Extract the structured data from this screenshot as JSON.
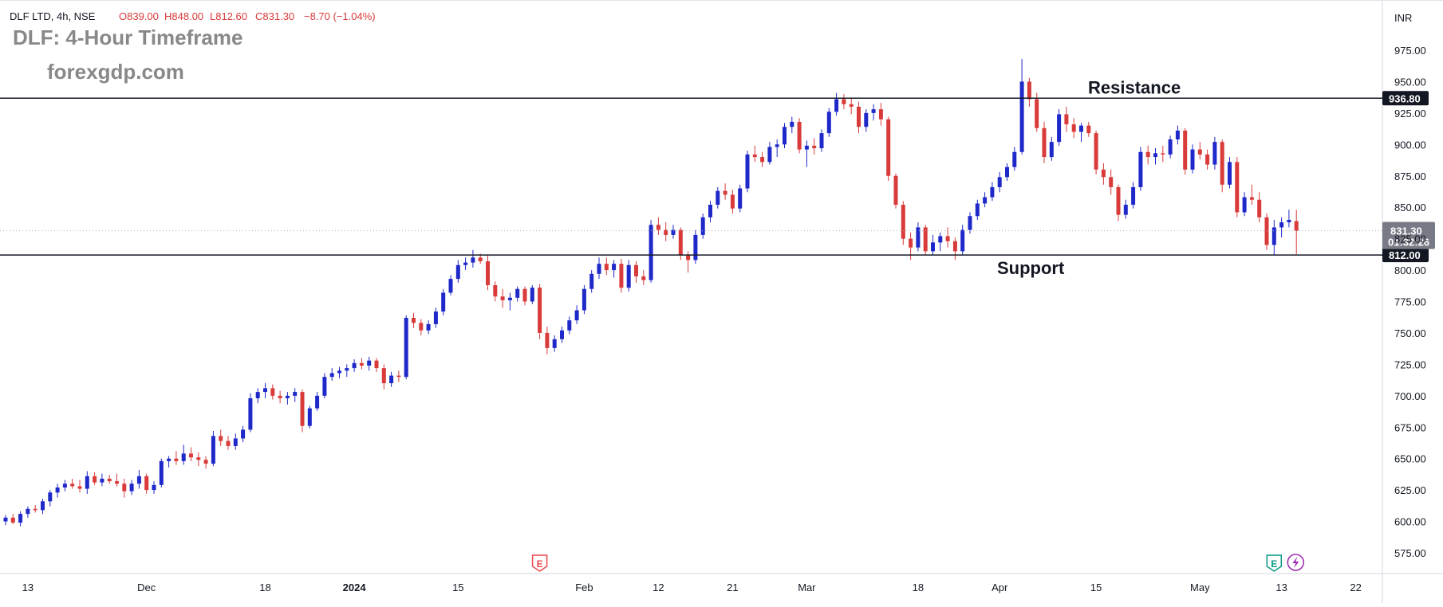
{
  "header": {
    "symbol_line": "DLF LTD, 4h, NSE",
    "open": "O839.00",
    "high": "H848.00",
    "low": "L812.60",
    "close": "C831.30",
    "change": "−8.70 (−1.04%)",
    "currency": "INR"
  },
  "overlay": {
    "title": "DLF: 4-Hour Timeframe",
    "watermark": "forexgdp.com",
    "resistance_label": "Resistance",
    "support_label": "Support"
  },
  "colors": {
    "up": "#1f28c8",
    "down": "#d93a3a",
    "line": "#131722",
    "badge_dark": "#131722",
    "badge_price": "#787b86",
    "event_red": "#e8474f",
    "event_green": "#089981",
    "event_purple": "#9c27b0"
  },
  "chart_data": {
    "type": "candlestick",
    "symbol": "DLF LTD",
    "timeframe": "4h",
    "exchange": "NSE",
    "currency": "INR",
    "ylim": [
      560,
      990
    ],
    "yticks": [
      975,
      950,
      925,
      900,
      875,
      850,
      825,
      800,
      775,
      750,
      725,
      700,
      675,
      650,
      625,
      600,
      575
    ],
    "x_ticks": [
      {
        "label": "13",
        "bar": 3
      },
      {
        "label": "Dec",
        "bar": 19
      },
      {
        "label": "18",
        "bar": 35
      },
      {
        "label": "2024",
        "bar": 47
      },
      {
        "label": "15",
        "bar": 61
      },
      {
        "label": "Feb",
        "bar": 78
      },
      {
        "label": "12",
        "bar": 88
      },
      {
        "label": "21",
        "bar": 98
      },
      {
        "label": "Mar",
        "bar": 108
      },
      {
        "label": "18",
        "bar": 123
      },
      {
        "label": "Apr",
        "bar": 134
      },
      {
        "label": "15",
        "bar": 147
      },
      {
        "label": "May",
        "bar": 161
      },
      {
        "label": "13",
        "bar": 172
      },
      {
        "label": "22",
        "bar": 182
      }
    ],
    "horizontal_levels": [
      {
        "name": "Resistance",
        "price": 936.8,
        "badge": "936.80"
      },
      {
        "name": "Support",
        "price": 812.0,
        "badge": "812.00"
      }
    ],
    "last_price": {
      "price": 831.3,
      "label": "831.30",
      "countdown": "01:32:26"
    },
    "event_markers": [
      {
        "label": "E",
        "bar": 72,
        "kind": "earnings-red"
      },
      {
        "label": "E",
        "bar": 171,
        "kind": "earnings-green"
      }
    ],
    "candles": [
      {
        "o": 600,
        "h": 605,
        "l": 597,
        "c": 603
      },
      {
        "o": 603,
        "h": 606,
        "l": 598,
        "c": 599
      },
      {
        "o": 599,
        "h": 608,
        "l": 596,
        "c": 606
      },
      {
        "o": 606,
        "h": 612,
        "l": 603,
        "c": 610
      },
      {
        "o": 610,
        "h": 613,
        "l": 607,
        "c": 609
      },
      {
        "o": 609,
        "h": 618,
        "l": 606,
        "c": 616
      },
      {
        "o": 616,
        "h": 625,
        "l": 612,
        "c": 623
      },
      {
        "o": 623,
        "h": 630,
        "l": 619,
        "c": 627
      },
      {
        "o": 627,
        "h": 633,
        "l": 624,
        "c": 630
      },
      {
        "o": 630,
        "h": 634,
        "l": 626,
        "c": 628
      },
      {
        "o": 628,
        "h": 633,
        "l": 623,
        "c": 626
      },
      {
        "o": 626,
        "h": 640,
        "l": 622,
        "c": 636
      },
      {
        "o": 636,
        "h": 639,
        "l": 629,
        "c": 631
      },
      {
        "o": 631,
        "h": 638,
        "l": 628,
        "c": 634
      },
      {
        "o": 634,
        "h": 637,
        "l": 630,
        "c": 632
      },
      {
        "o": 632,
        "h": 638,
        "l": 628,
        "c": 630
      },
      {
        "o": 630,
        "h": 634,
        "l": 619,
        "c": 624
      },
      {
        "o": 624,
        "h": 633,
        "l": 621,
        "c": 630
      },
      {
        "o": 630,
        "h": 641,
        "l": 626,
        "c": 636
      },
      {
        "o": 636,
        "h": 638,
        "l": 622,
        "c": 625
      },
      {
        "o": 625,
        "h": 632,
        "l": 622,
        "c": 629
      },
      {
        "o": 629,
        "h": 650,
        "l": 627,
        "c": 648
      },
      {
        "o": 648,
        "h": 652,
        "l": 643,
        "c": 650
      },
      {
        "o": 650,
        "h": 656,
        "l": 645,
        "c": 648
      },
      {
        "o": 648,
        "h": 661,
        "l": 645,
        "c": 654
      },
      {
        "o": 654,
        "h": 659,
        "l": 648,
        "c": 651
      },
      {
        "o": 651,
        "h": 655,
        "l": 644,
        "c": 649
      },
      {
        "o": 649,
        "h": 652,
        "l": 642,
        "c": 646
      },
      {
        "o": 646,
        "h": 672,
        "l": 644,
        "c": 668
      },
      {
        "o": 668,
        "h": 673,
        "l": 660,
        "c": 664
      },
      {
        "o": 664,
        "h": 668,
        "l": 657,
        "c": 660
      },
      {
        "o": 660,
        "h": 670,
        "l": 657,
        "c": 666
      },
      {
        "o": 666,
        "h": 676,
        "l": 663,
        "c": 673
      },
      {
        "o": 673,
        "h": 702,
        "l": 671,
        "c": 698
      },
      {
        "o": 698,
        "h": 706,
        "l": 694,
        "c": 703
      },
      {
        "o": 703,
        "h": 710,
        "l": 698,
        "c": 706
      },
      {
        "o": 706,
        "h": 709,
        "l": 697,
        "c": 700
      },
      {
        "o": 700,
        "h": 704,
        "l": 694,
        "c": 698
      },
      {
        "o": 698,
        "h": 703,
        "l": 693,
        "c": 700
      },
      {
        "o": 700,
        "h": 706,
        "l": 695,
        "c": 703
      },
      {
        "o": 703,
        "h": 705,
        "l": 671,
        "c": 676
      },
      {
        "o": 676,
        "h": 692,
        "l": 674,
        "c": 690
      },
      {
        "o": 690,
        "h": 703,
        "l": 688,
        "c": 700
      },
      {
        "o": 700,
        "h": 718,
        "l": 698,
        "c": 715
      },
      {
        "o": 715,
        "h": 722,
        "l": 712,
        "c": 718
      },
      {
        "o": 718,
        "h": 723,
        "l": 714,
        "c": 720
      },
      {
        "o": 720,
        "h": 725,
        "l": 715,
        "c": 722
      },
      {
        "o": 722,
        "h": 729,
        "l": 719,
        "c": 726
      },
      {
        "o": 726,
        "h": 730,
        "l": 721,
        "c": 724
      },
      {
        "o": 724,
        "h": 731,
        "l": 720,
        "c": 728
      },
      {
        "o": 728,
        "h": 730,
        "l": 719,
        "c": 722
      },
      {
        "o": 722,
        "h": 725,
        "l": 705,
        "c": 710
      },
      {
        "o": 710,
        "h": 719,
        "l": 707,
        "c": 716
      },
      {
        "o": 716,
        "h": 720,
        "l": 711,
        "c": 715
      },
      {
        "o": 715,
        "h": 764,
        "l": 713,
        "c": 762
      },
      {
        "o": 762,
        "h": 766,
        "l": 754,
        "c": 758
      },
      {
        "o": 758,
        "h": 761,
        "l": 748,
        "c": 752
      },
      {
        "o": 752,
        "h": 760,
        "l": 749,
        "c": 757
      },
      {
        "o": 757,
        "h": 770,
        "l": 754,
        "c": 767
      },
      {
        "o": 767,
        "h": 785,
        "l": 764,
        "c": 782
      },
      {
        "o": 782,
        "h": 796,
        "l": 780,
        "c": 793
      },
      {
        "o": 793,
        "h": 808,
        "l": 790,
        "c": 804
      },
      {
        "o": 804,
        "h": 810,
        "l": 800,
        "c": 806
      },
      {
        "o": 806,
        "h": 816,
        "l": 802,
        "c": 810
      },
      {
        "o": 810,
        "h": 813,
        "l": 805,
        "c": 807
      },
      {
        "o": 807,
        "h": 812,
        "l": 784,
        "c": 788
      },
      {
        "o": 788,
        "h": 791,
        "l": 775,
        "c": 779
      },
      {
        "o": 779,
        "h": 785,
        "l": 770,
        "c": 776
      },
      {
        "o": 776,
        "h": 782,
        "l": 768,
        "c": 778
      },
      {
        "o": 778,
        "h": 787,
        "l": 775,
        "c": 785
      },
      {
        "o": 785,
        "h": 787,
        "l": 772,
        "c": 775
      },
      {
        "o": 775,
        "h": 788,
        "l": 773,
        "c": 786
      },
      {
        "o": 786,
        "h": 789,
        "l": 745,
        "c": 750
      },
      {
        "o": 750,
        "h": 755,
        "l": 733,
        "c": 738
      },
      {
        "o": 738,
        "h": 748,
        "l": 735,
        "c": 745
      },
      {
        "o": 745,
        "h": 755,
        "l": 742,
        "c": 752
      },
      {
        "o": 752,
        "h": 763,
        "l": 749,
        "c": 760
      },
      {
        "o": 760,
        "h": 772,
        "l": 757,
        "c": 768
      },
      {
        "o": 768,
        "h": 788,
        "l": 765,
        "c": 785
      },
      {
        "o": 785,
        "h": 800,
        "l": 782,
        "c": 797
      },
      {
        "o": 797,
        "h": 810,
        "l": 793,
        "c": 805
      },
      {
        "o": 805,
        "h": 810,
        "l": 796,
        "c": 800
      },
      {
        "o": 800,
        "h": 808,
        "l": 794,
        "c": 805
      },
      {
        "o": 805,
        "h": 809,
        "l": 782,
        "c": 786
      },
      {
        "o": 786,
        "h": 808,
        "l": 783,
        "c": 804
      },
      {
        "o": 804,
        "h": 807,
        "l": 790,
        "c": 795
      },
      {
        "o": 795,
        "h": 800,
        "l": 788,
        "c": 792
      },
      {
        "o": 792,
        "h": 840,
        "l": 790,
        "c": 836
      },
      {
        "o": 836,
        "h": 842,
        "l": 828,
        "c": 832
      },
      {
        "o": 832,
        "h": 838,
        "l": 823,
        "c": 828
      },
      {
        "o": 828,
        "h": 836,
        "l": 825,
        "c": 832
      },
      {
        "o": 832,
        "h": 834,
        "l": 808,
        "c": 812
      },
      {
        "o": 812,
        "h": 815,
        "l": 798,
        "c": 808
      },
      {
        "o": 808,
        "h": 832,
        "l": 805,
        "c": 828
      },
      {
        "o": 828,
        "h": 845,
        "l": 825,
        "c": 842
      },
      {
        "o": 842,
        "h": 855,
        "l": 838,
        "c": 852
      },
      {
        "o": 852,
        "h": 866,
        "l": 849,
        "c": 863
      },
      {
        "o": 863,
        "h": 869,
        "l": 856,
        "c": 860
      },
      {
        "o": 860,
        "h": 864,
        "l": 845,
        "c": 849
      },
      {
        "o": 849,
        "h": 868,
        "l": 846,
        "c": 865
      },
      {
        "o": 865,
        "h": 895,
        "l": 862,
        "c": 892
      },
      {
        "o": 892,
        "h": 899,
        "l": 886,
        "c": 890
      },
      {
        "o": 890,
        "h": 894,
        "l": 882,
        "c": 886
      },
      {
        "o": 886,
        "h": 902,
        "l": 884,
        "c": 898
      },
      {
        "o": 898,
        "h": 904,
        "l": 890,
        "c": 900
      },
      {
        "o": 900,
        "h": 917,
        "l": 897,
        "c": 914
      },
      {
        "o": 914,
        "h": 922,
        "l": 909,
        "c": 918
      },
      {
        "o": 918,
        "h": 921,
        "l": 893,
        "c": 896
      },
      {
        "o": 896,
        "h": 903,
        "l": 882,
        "c": 899
      },
      {
        "o": 899,
        "h": 905,
        "l": 892,
        "c": 897
      },
      {
        "o": 897,
        "h": 912,
        "l": 894,
        "c": 909
      },
      {
        "o": 909,
        "h": 929,
        "l": 906,
        "c": 926
      },
      {
        "o": 926,
        "h": 941,
        "l": 923,
        "c": 936
      },
      {
        "o": 936,
        "h": 940,
        "l": 928,
        "c": 932
      },
      {
        "o": 932,
        "h": 937,
        "l": 924,
        "c": 930
      },
      {
        "o": 930,
        "h": 934,
        "l": 909,
        "c": 914
      },
      {
        "o": 914,
        "h": 928,
        "l": 910,
        "c": 925
      },
      {
        "o": 925,
        "h": 932,
        "l": 919,
        "c": 928
      },
      {
        "o": 928,
        "h": 933,
        "l": 915,
        "c": 920
      },
      {
        "o": 920,
        "h": 922,
        "l": 871,
        "c": 875
      },
      {
        "o": 875,
        "h": 877,
        "l": 849,
        "c": 852
      },
      {
        "o": 852,
        "h": 855,
        "l": 820,
        "c": 825
      },
      {
        "o": 825,
        "h": 830,
        "l": 808,
        "c": 818
      },
      {
        "o": 818,
        "h": 838,
        "l": 815,
        "c": 834
      },
      {
        "o": 834,
        "h": 836,
        "l": 812,
        "c": 815
      },
      {
        "o": 815,
        "h": 828,
        "l": 812,
        "c": 822
      },
      {
        "o": 822,
        "h": 830,
        "l": 815,
        "c": 827
      },
      {
        "o": 827,
        "h": 834,
        "l": 818,
        "c": 823
      },
      {
        "o": 823,
        "h": 826,
        "l": 808,
        "c": 815
      },
      {
        "o": 815,
        "h": 836,
        "l": 812,
        "c": 832
      },
      {
        "o": 832,
        "h": 846,
        "l": 829,
        "c": 843
      },
      {
        "o": 843,
        "h": 856,
        "l": 840,
        "c": 853
      },
      {
        "o": 853,
        "h": 862,
        "l": 850,
        "c": 858
      },
      {
        "o": 858,
        "h": 870,
        "l": 855,
        "c": 866
      },
      {
        "o": 866,
        "h": 878,
        "l": 862,
        "c": 874
      },
      {
        "o": 874,
        "h": 885,
        "l": 871,
        "c": 882
      },
      {
        "o": 882,
        "h": 898,
        "l": 879,
        "c": 894
      },
      {
        "o": 894,
        "h": 968,
        "l": 892,
        "c": 950
      },
      {
        "o": 950,
        "h": 953,
        "l": 930,
        "c": 936
      },
      {
        "o": 936,
        "h": 941,
        "l": 910,
        "c": 913
      },
      {
        "o": 913,
        "h": 918,
        "l": 885,
        "c": 890
      },
      {
        "o": 890,
        "h": 906,
        "l": 887,
        "c": 902
      },
      {
        "o": 902,
        "h": 928,
        "l": 899,
        "c": 924
      },
      {
        "o": 924,
        "h": 930,
        "l": 910,
        "c": 916
      },
      {
        "o": 916,
        "h": 921,
        "l": 905,
        "c": 910
      },
      {
        "o": 910,
        "h": 917,
        "l": 902,
        "c": 915
      },
      {
        "o": 915,
        "h": 918,
        "l": 906,
        "c": 909
      },
      {
        "o": 909,
        "h": 911,
        "l": 876,
        "c": 880
      },
      {
        "o": 880,
        "h": 885,
        "l": 868,
        "c": 874
      },
      {
        "o": 874,
        "h": 880,
        "l": 860,
        "c": 866
      },
      {
        "o": 866,
        "h": 868,
        "l": 839,
        "c": 844
      },
      {
        "o": 844,
        "h": 856,
        "l": 841,
        "c": 852
      },
      {
        "o": 852,
        "h": 870,
        "l": 849,
        "c": 866
      },
      {
        "o": 866,
        "h": 898,
        "l": 863,
        "c": 894
      },
      {
        "o": 894,
        "h": 899,
        "l": 884,
        "c": 890
      },
      {
        "o": 890,
        "h": 897,
        "l": 884,
        "c": 893
      },
      {
        "o": 893,
        "h": 899,
        "l": 886,
        "c": 892
      },
      {
        "o": 892,
        "h": 907,
        "l": 889,
        "c": 904
      },
      {
        "o": 904,
        "h": 915,
        "l": 900,
        "c": 911
      },
      {
        "o": 911,
        "h": 913,
        "l": 876,
        "c": 880
      },
      {
        "o": 880,
        "h": 900,
        "l": 877,
        "c": 896
      },
      {
        "o": 896,
        "h": 902,
        "l": 888,
        "c": 892
      },
      {
        "o": 892,
        "h": 896,
        "l": 880,
        "c": 884
      },
      {
        "o": 884,
        "h": 906,
        "l": 880,
        "c": 902
      },
      {
        "o": 902,
        "h": 904,
        "l": 862,
        "c": 868
      },
      {
        "o": 868,
        "h": 890,
        "l": 865,
        "c": 886
      },
      {
        "o": 886,
        "h": 890,
        "l": 842,
        "c": 846
      },
      {
        "o": 846,
        "h": 862,
        "l": 843,
        "c": 858
      },
      {
        "o": 858,
        "h": 868,
        "l": 852,
        "c": 856
      },
      {
        "o": 856,
        "h": 862,
        "l": 838,
        "c": 842
      },
      {
        "o": 842,
        "h": 845,
        "l": 816,
        "c": 820
      },
      {
        "o": 820,
        "h": 840,
        "l": 812,
        "c": 834
      },
      {
        "o": 834,
        "h": 842,
        "l": 826,
        "c": 838
      },
      {
        "o": 838,
        "h": 848,
        "l": 834,
        "c": 840
      },
      {
        "o": 839,
        "h": 848,
        "l": 812.6,
        "c": 831.3
      }
    ]
  }
}
